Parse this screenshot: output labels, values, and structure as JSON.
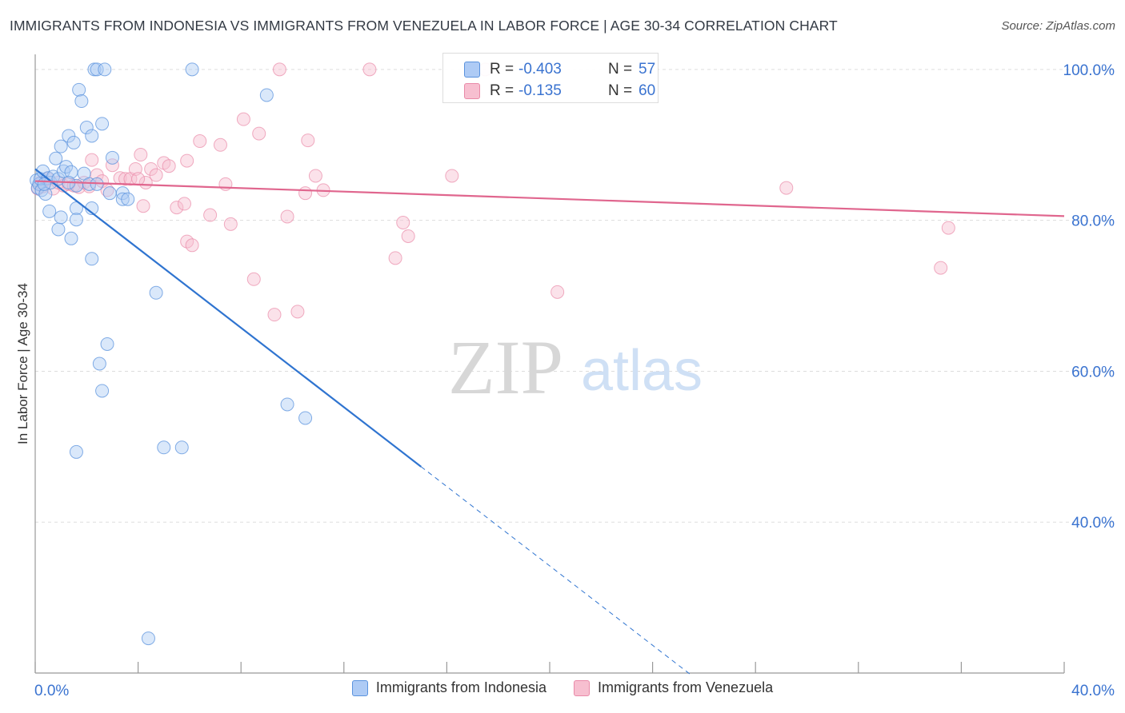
{
  "title": "IMMIGRANTS FROM INDONESIA VS IMMIGRANTS FROM VENEZUELA IN LABOR FORCE | AGE 30-34 CORRELATION CHART",
  "source": "Source: ZipAtlas.com",
  "watermark": {
    "zip": "ZIP",
    "atlas": "atlas"
  },
  "stats": {
    "indonesia": {
      "r_label": "R =",
      "r_value": "-0.403",
      "n_label": "N =",
      "n_value": "57"
    },
    "venezuela": {
      "r_label": "R =",
      "r_value": "-0.135",
      "n_label": "N =",
      "n_value": "60"
    }
  },
  "legend": {
    "indonesia": "Immigrants from Indonesia",
    "venezuela": "Immigrants from Venezuela"
  },
  "colors": {
    "indonesia_fill": "#aecbf5",
    "indonesia_stroke": "#5b93de",
    "indonesia_line": "#2f74d0",
    "venezuela_fill": "#f7bfd0",
    "venezuela_stroke": "#e98aa8",
    "venezuela_line": "#e0668e",
    "tick_label": "#3a73d0",
    "grid": "#dddddd"
  },
  "chart_data": {
    "type": "scatter",
    "xlabel": "",
    "ylabel": "In Labor Force | Age 30-34",
    "xlim": [
      0,
      40
    ],
    "ylim": [
      20,
      102
    ],
    "x_tick_labels": [
      {
        "value": 0,
        "label": "0.0%"
      },
      {
        "value": 40,
        "label": "40.0%"
      }
    ],
    "y_tick_labels": [
      {
        "value": 40,
        "label": "40.0%"
      },
      {
        "value": 60,
        "label": "60.0%"
      },
      {
        "value": 80,
        "label": "80.0%"
      },
      {
        "value": 100,
        "label": "100.0%"
      }
    ],
    "grid": true,
    "legend_position": "bottom",
    "series": [
      {
        "name": "Immigrants from Indonesia",
        "points": [
          [
            0.05,
            85.3
          ],
          [
            0.1,
            84.3
          ],
          [
            0.15,
            84.8
          ],
          [
            0.2,
            85.5
          ],
          [
            0.25,
            84.0
          ],
          [
            0.3,
            86.5
          ],
          [
            0.4,
            83.5
          ],
          [
            0.5,
            85.6
          ],
          [
            0.6,
            85.0
          ],
          [
            0.7,
            85.8
          ],
          [
            0.8,
            88.2
          ],
          [
            0.9,
            85.5
          ],
          [
            1.0,
            89.8
          ],
          [
            1.1,
            86.5
          ],
          [
            1.2,
            87.1
          ],
          [
            1.3,
            91.2
          ],
          [
            1.4,
            86.4
          ],
          [
            1.5,
            90.3
          ],
          [
            1.6,
            84.6
          ],
          [
            1.7,
            97.3
          ],
          [
            1.8,
            95.8
          ],
          [
            1.9,
            86.2
          ],
          [
            2.0,
            92.3
          ],
          [
            2.1,
            84.8
          ],
          [
            2.2,
            91.2
          ],
          [
            2.3,
            100.0
          ],
          [
            2.4,
            100.0
          ],
          [
            2.4,
            84.8
          ],
          [
            2.6,
            92.8
          ],
          [
            2.7,
            100.0
          ],
          [
            2.9,
            83.6
          ],
          [
            3.0,
            88.3
          ],
          [
            3.4,
            83.6
          ],
          [
            0.55,
            81.2
          ],
          [
            0.9,
            78.8
          ],
          [
            1.0,
            80.4
          ],
          [
            1.4,
            77.6
          ],
          [
            1.6,
            81.6
          ],
          [
            1.6,
            80.1
          ],
          [
            2.2,
            81.6
          ],
          [
            2.2,
            74.9
          ],
          [
            3.4,
            82.8
          ],
          [
            3.6,
            82.8
          ],
          [
            4.7,
            70.4
          ],
          [
            2.8,
            63.6
          ],
          [
            2.5,
            61.0
          ],
          [
            2.6,
            57.4
          ],
          [
            1.6,
            49.3
          ],
          [
            5.0,
            49.9
          ],
          [
            5.7,
            49.9
          ],
          [
            9.8,
            55.6
          ],
          [
            10.5,
            53.8
          ],
          [
            6.1,
            100.0
          ],
          [
            9.0,
            96.6
          ],
          [
            4.4,
            24.6
          ],
          [
            0.35,
            84.8
          ],
          [
            1.3,
            85.0
          ]
        ]
      },
      {
        "name": "Immigrants from Venezuela",
        "points": [
          [
            0.1,
            84.2
          ],
          [
            0.2,
            85.0
          ],
          [
            0.3,
            84.5
          ],
          [
            0.5,
            85.5
          ],
          [
            0.7,
            84.2
          ],
          [
            0.9,
            85.0
          ],
          [
            1.1,
            84.6
          ],
          [
            1.3,
            84.8
          ],
          [
            1.5,
            84.6
          ],
          [
            1.7,
            84.4
          ],
          [
            1.9,
            85.0
          ],
          [
            2.1,
            84.5
          ],
          [
            2.2,
            88.0
          ],
          [
            2.4,
            86.0
          ],
          [
            2.6,
            85.2
          ],
          [
            2.8,
            84.0
          ],
          [
            3.0,
            87.3
          ],
          [
            3.3,
            85.6
          ],
          [
            3.5,
            85.5
          ],
          [
            3.7,
            85.5
          ],
          [
            3.9,
            86.8
          ],
          [
            4.1,
            88.7
          ],
          [
            4.3,
            85.0
          ],
          [
            4.5,
            86.8
          ],
          [
            4.7,
            86.0
          ],
          [
            5.0,
            87.6
          ],
          [
            5.2,
            87.2
          ],
          [
            5.5,
            81.7
          ],
          [
            5.8,
            82.2
          ],
          [
            5.9,
            87.9
          ],
          [
            6.4,
            90.5
          ],
          [
            6.8,
            80.7
          ],
          [
            7.2,
            90.0
          ],
          [
            7.4,
            84.8
          ],
          [
            7.6,
            79.5
          ],
          [
            8.1,
            93.4
          ],
          [
            8.7,
            91.5
          ],
          [
            8.5,
            72.2
          ],
          [
            9.3,
            67.5
          ],
          [
            9.5,
            100.0
          ],
          [
            9.8,
            80.5
          ],
          [
            10.2,
            67.9
          ],
          [
            10.6,
            90.6
          ],
          [
            10.9,
            85.9
          ],
          [
            11.2,
            84.0
          ],
          [
            13.0,
            100.0
          ],
          [
            14.0,
            75.0
          ],
          [
            14.3,
            79.7
          ],
          [
            14.5,
            77.9
          ],
          [
            16.2,
            85.9
          ],
          [
            17.5,
            100.0
          ],
          [
            20.3,
            70.5
          ],
          [
            29.2,
            84.3
          ],
          [
            35.5,
            79.0
          ],
          [
            35.2,
            73.7
          ],
          [
            4.2,
            81.9
          ],
          [
            5.9,
            77.2
          ],
          [
            6.1,
            76.7
          ],
          [
            10.5,
            83.6
          ],
          [
            4.0,
            85.5
          ]
        ]
      }
    ],
    "trendlines": [
      {
        "series": "Immigrants from Indonesia",
        "x_start": 0,
        "y_start": 86.8,
        "x_solid_end": 15.0,
        "x_end": 25.5,
        "slope": -2.63
      },
      {
        "series": "Immigrants from Venezuela",
        "x_start": 0,
        "y_start": 85.2,
        "x_end": 40,
        "slope": -0.116
      }
    ]
  }
}
